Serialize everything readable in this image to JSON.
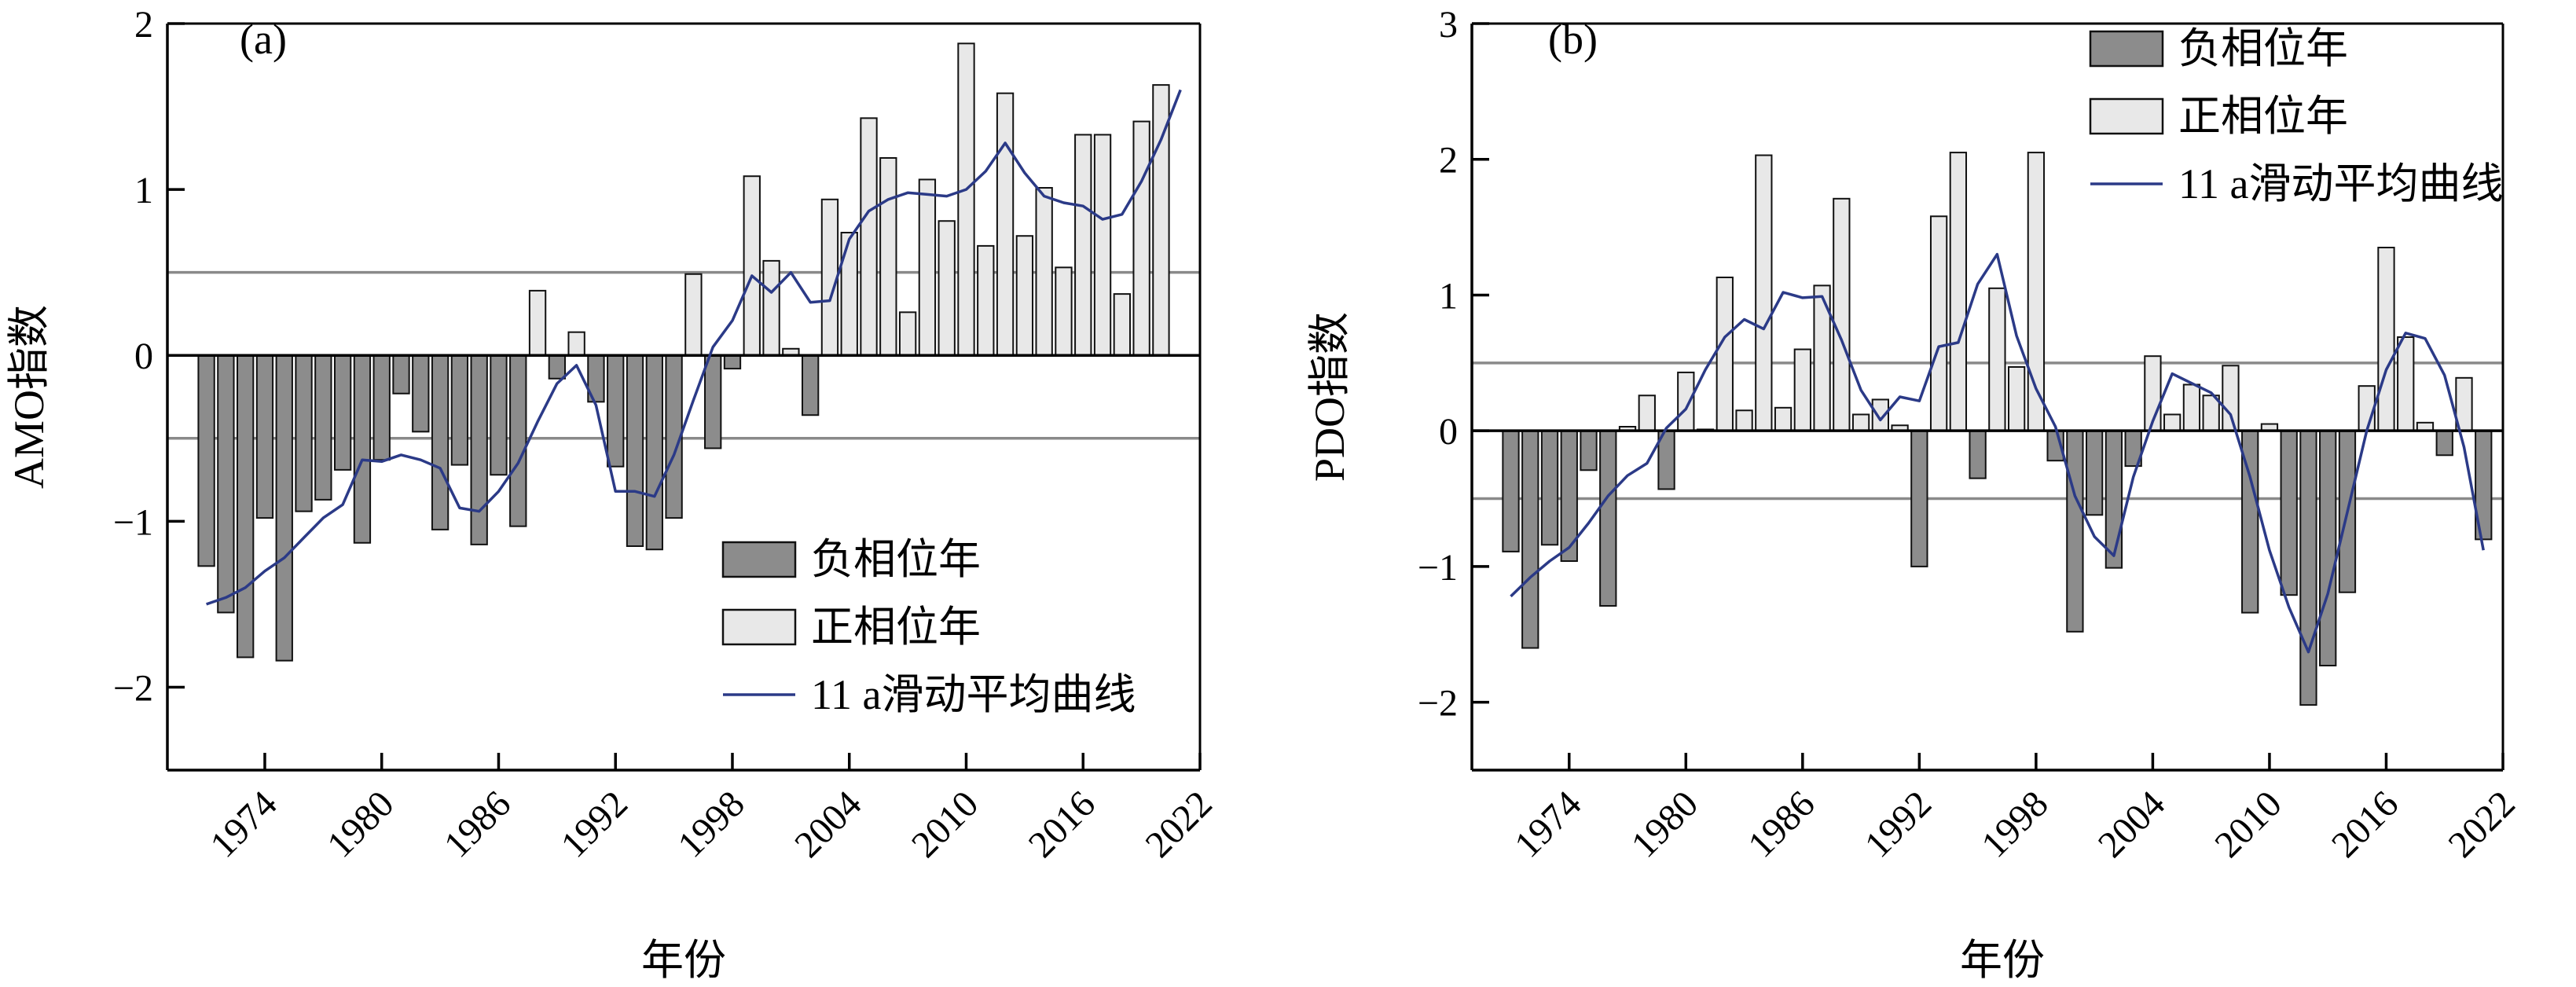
{
  "chart_data": [
    {
      "type": "bar",
      "panel_label": "(a)",
      "ylabel": "AMO指数",
      "xlabel": "年份",
      "xlim": [
        1969,
        2022
      ],
      "ylim": [
        -2.5,
        2
      ],
      "yticks": [
        -2,
        -1,
        0,
        1,
        2
      ],
      "ytick_labels": [
        "−2",
        "−1",
        "0",
        "1",
        "2"
      ],
      "xticks": [
        1974,
        1980,
        1986,
        1992,
        1998,
        2004,
        2010,
        2016,
        2022
      ],
      "xtick_labels": [
        "1974",
        "1980",
        "1986",
        "1992",
        "1998",
        "2004",
        "2010",
        "2016",
        "2022"
      ],
      "threshold_lines": [
        0.5,
        -0.5
      ],
      "legend_position": "lower-right",
      "legend": [
        "负相位年",
        "正相位年",
        "11 a滑动平均曲线"
      ],
      "years": [
        1971,
        1972,
        1973,
        1974,
        1975,
        1976,
        1977,
        1978,
        1979,
        1980,
        1981,
        1982,
        1983,
        1984,
        1985,
        1986,
        1987,
        1988,
        1989,
        1990,
        1991,
        1992,
        1993,
        1994,
        1995,
        1996,
        1997,
        1998,
        1999,
        2000,
        2001,
        2002,
        2003,
        2004,
        2005,
        2006,
        2007,
        2008,
        2009,
        2010,
        2011,
        2012,
        2013,
        2014,
        2015,
        2016,
        2017,
        2018,
        2019,
        2020,
        2021
      ],
      "series": [
        {
          "name": "负相位年",
          "values": [
            -1.27,
            -1.55,
            -1.82,
            -0.98,
            -1.84,
            -0.94,
            -0.87,
            -0.69,
            -1.13,
            -0.63,
            -0.23,
            -0.46,
            -1.05,
            -0.66,
            -1.14,
            -0.72,
            -1.03,
            null,
            -0.14,
            null,
            -0.28,
            -0.67,
            -1.15,
            -1.17,
            -0.98,
            null,
            -0.56,
            -0.08,
            null,
            null,
            null,
            -0.36,
            null,
            null,
            null,
            null,
            null,
            null,
            null,
            null,
            null,
            null,
            null,
            null,
            null,
            null,
            null,
            null,
            null,
            null,
            null
          ]
        },
        {
          "name": "正相位年",
          "values": [
            null,
            null,
            null,
            null,
            null,
            null,
            null,
            null,
            null,
            null,
            null,
            null,
            null,
            null,
            null,
            null,
            null,
            0.39,
            null,
            0.14,
            null,
            null,
            null,
            null,
            null,
            0.49,
            null,
            null,
            1.08,
            0.57,
            0.04,
            null,
            0.94,
            0.74,
            1.43,
            1.19,
            0.26,
            1.06,
            0.81,
            1.88,
            0.66,
            1.58,
            0.72,
            1.01,
            0.53,
            1.33,
            1.33,
            0.37,
            1.41,
            1.63,
            null
          ]
        },
        {
          "name": "11 a滑动平均曲线",
          "x": [
            1971,
            1972,
            1973,
            1974,
            1975,
            1976,
            1977,
            1978,
            1979,
            1980,
            1981,
            1982,
            1983,
            1984,
            1985,
            1986,
            1987,
            1988,
            1989,
            1990,
            1991,
            1992,
            1993,
            1994,
            1995,
            1996,
            1997,
            1998,
            1999,
            2000,
            2001,
            2002,
            2003,
            2004,
            2005,
            2006,
            2007,
            2008,
            2009,
            2010,
            2011,
            2012,
            2013,
            2014,
            2015,
            2016,
            2017,
            2018,
            2019,
            2020,
            2021
          ],
          "values": [
            -1.5,
            -1.46,
            -1.4,
            -1.3,
            -1.22,
            -1.1,
            -0.98,
            -0.9,
            -0.63,
            -0.64,
            -0.6,
            -0.63,
            -0.68,
            -0.92,
            -0.94,
            -0.82,
            -0.65,
            -0.4,
            -0.17,
            -0.06,
            -0.3,
            -0.82,
            -0.82,
            -0.85,
            -0.6,
            -0.27,
            0.05,
            0.21,
            0.48,
            0.38,
            0.5,
            0.32,
            0.33,
            0.7,
            0.87,
            0.94,
            0.98,
            0.97,
            0.96,
            1.0,
            1.11,
            1.28,
            1.1,
            0.96,
            0.92,
            0.9,
            0.82,
            0.85,
            1.05,
            1.3,
            1.6
          ]
        }
      ]
    },
    {
      "type": "bar",
      "panel_label": "(b)",
      "ylabel": "PDO指数",
      "xlabel": "年份",
      "xlim": [
        1969,
        2022
      ],
      "ylim": [
        -2.5,
        3
      ],
      "yticks": [
        -2,
        -1,
        0,
        1,
        2,
        3
      ],
      "ytick_labels": [
        "−2",
        "−1",
        "0",
        "1",
        "2",
        "3"
      ],
      "xticks": [
        1974,
        1980,
        1986,
        1992,
        1998,
        2004,
        2010,
        2016,
        2022
      ],
      "xtick_labels": [
        "1974",
        "1980",
        "1986",
        "1992",
        "1998",
        "2004",
        "2010",
        "2016",
        "2022"
      ],
      "threshold_lines": [
        0.5,
        -0.5
      ],
      "legend_position": "top-right",
      "legend": [
        "负相位年",
        "正相位年",
        "11 a滑动平均曲线"
      ],
      "years": [
        1971,
        1972,
        1973,
        1974,
        1975,
        1976,
        1977,
        1978,
        1979,
        1980,
        1981,
        1982,
        1983,
        1984,
        1985,
        1986,
        1987,
        1988,
        1989,
        1990,
        1991,
        1992,
        1993,
        1994,
        1995,
        1996,
        1997,
        1998,
        1999,
        2000,
        2001,
        2002,
        2003,
        2004,
        2005,
        2006,
        2007,
        2008,
        2009,
        2010,
        2011,
        2012,
        2013,
        2014,
        2015,
        2016,
        2017,
        2018,
        2019,
        2020,
        2021
      ],
      "series": [
        {
          "name": "负相位年",
          "values": [
            -0.89,
            -1.6,
            -0.84,
            -0.96,
            -0.29,
            -1.29,
            null,
            null,
            -0.43,
            null,
            null,
            null,
            null,
            null,
            null,
            null,
            null,
            null,
            null,
            null,
            null,
            -1.0,
            null,
            null,
            -0.35,
            null,
            null,
            null,
            -0.22,
            -1.48,
            -0.62,
            -1.01,
            -0.26,
            null,
            null,
            null,
            null,
            null,
            -1.34,
            null,
            -1.21,
            -2.02,
            -1.73,
            -1.19,
            null,
            null,
            null,
            null,
            -0.18,
            null,
            -0.8
          ]
        },
        {
          "name": "正相位年",
          "values": [
            null,
            null,
            null,
            null,
            null,
            null,
            0.03,
            0.26,
            null,
            0.43,
            0.01,
            1.13,
            0.15,
            2.03,
            0.17,
            0.6,
            1.07,
            1.71,
            0.12,
            0.23,
            0.04,
            null,
            1.58,
            2.05,
            null,
            1.05,
            0.47,
            2.05,
            null,
            null,
            null,
            null,
            null,
            0.55,
            0.12,
            0.34,
            0.26,
            0.48,
            null,
            0.05,
            null,
            null,
            null,
            null,
            0.33,
            1.35,
            0.69,
            0.06,
            null,
            0.39,
            null
          ]
        },
        {
          "name": "11 a滑动平均曲线",
          "x": [
            1971,
            1972,
            1973,
            1974,
            1975,
            1976,
            1977,
            1978,
            1979,
            1980,
            1981,
            1982,
            1983,
            1984,
            1985,
            1986,
            1987,
            1988,
            1989,
            1990,
            1991,
            1992,
            1993,
            1994,
            1995,
            1996,
            1997,
            1998,
            1999,
            2000,
            2001,
            2002,
            2003,
            2004,
            2005,
            2006,
            2007,
            2008,
            2009,
            2010,
            2011,
            2012,
            2013,
            2014,
            2015,
            2016,
            2017,
            2018,
            2019,
            2020,
            2021
          ],
          "values": [
            -1.22,
            -1.08,
            -0.96,
            -0.86,
            -0.68,
            -0.48,
            -0.33,
            -0.24,
            0.02,
            0.16,
            0.45,
            0.69,
            0.82,
            0.75,
            1.02,
            0.98,
            0.99,
            0.67,
            0.3,
            0.08,
            0.25,
            0.22,
            0.62,
            0.65,
            1.08,
            1.3,
            0.7,
            0.31,
            0.03,
            -0.48,
            -0.78,
            -0.92,
            -0.34,
            0.07,
            0.42,
            0.35,
            0.28,
            0.12,
            -0.34,
            -0.88,
            -1.3,
            -1.63,
            -1.2,
            -0.6,
            0.0,
            0.45,
            0.72,
            0.68,
            0.41,
            -0.12,
            -0.88
          ]
        }
      ]
    }
  ]
}
